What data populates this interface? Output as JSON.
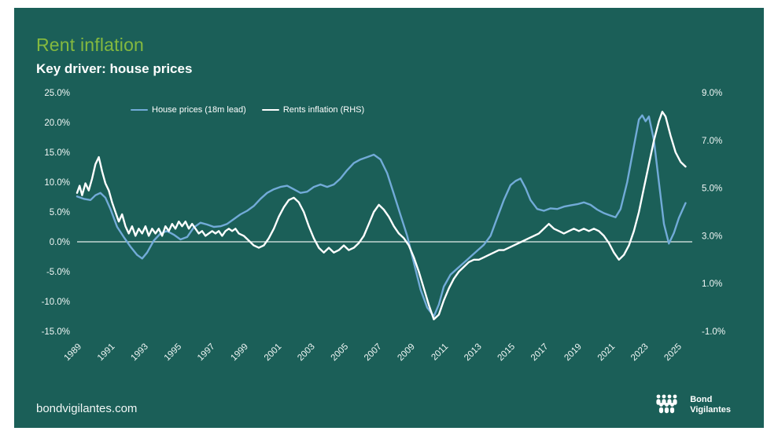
{
  "page": {
    "title": "Rent inflation",
    "subtitle": "Key driver: house prices",
    "footer_link": "bondvigilantes.com",
    "logo_line1": "Bond",
    "logo_line2": "Vigilantes"
  },
  "colors": {
    "background": "#1b5f58",
    "title_green": "#84b93f",
    "axis_text": "#f2f7f6",
    "zero_line": "#e6eeec",
    "house_prices_line": "#72abd8",
    "rents_line": "#ffffff"
  },
  "chart_data": {
    "type": "line",
    "title": "Rent inflation",
    "subtitle": "Key driver: house prices",
    "grid": false,
    "legend_position": "top-left",
    "zero_line_value": 0,
    "x_axis": {
      "range": [
        1989,
        2025.9
      ],
      "ticks": [
        {
          "value": 1989,
          "label": "1989"
        },
        {
          "value": 1991,
          "label": "1991"
        },
        {
          "value": 1993,
          "label": "1993"
        },
        {
          "value": 1995,
          "label": "1995"
        },
        {
          "value": 1997,
          "label": "1997"
        },
        {
          "value": 1999,
          "label": "1999"
        },
        {
          "value": 2001,
          "label": "2001"
        },
        {
          "value": 2003,
          "label": "2003"
        },
        {
          "value": 2005,
          "label": "2005"
        },
        {
          "value": 2007,
          "label": "2007"
        },
        {
          "value": 2009,
          "label": "2009"
        },
        {
          "value": 2011,
          "label": "2011"
        },
        {
          "value": 2013,
          "label": "2013"
        },
        {
          "value": 2015,
          "label": "2015"
        },
        {
          "value": 2017,
          "label": "2017"
        },
        {
          "value": 2019,
          "label": "2019"
        },
        {
          "value": 2021,
          "label": "2021"
        },
        {
          "value": 2023,
          "label": "2023"
        },
        {
          "value": 2025,
          "label": "2025"
        }
      ]
    },
    "left_axis": {
      "range": [
        -15,
        25
      ],
      "ticks": [
        {
          "value": 25,
          "label": "25.0%"
        },
        {
          "value": 20,
          "label": "20.0%"
        },
        {
          "value": 15,
          "label": "15.0%"
        },
        {
          "value": 10,
          "label": "10.0%"
        },
        {
          "value": 5,
          "label": "5.0%"
        },
        {
          "value": 0,
          "label": "0.0%"
        },
        {
          "value": -5,
          "label": "-5.0%"
        },
        {
          "value": -10,
          "label": "-10.0%"
        },
        {
          "value": -15,
          "label": "-15.0%"
        }
      ]
    },
    "right_axis": {
      "range": [
        -1,
        9
      ],
      "ticks": [
        {
          "value": 9,
          "label": "9.0%"
        },
        {
          "value": 7,
          "label": "7.0%"
        },
        {
          "value": 5,
          "label": "5.0%"
        },
        {
          "value": 3,
          "label": "3.0%"
        },
        {
          "value": 1,
          "label": "1.0%"
        },
        {
          "value": -1,
          "label": "-1.0%"
        }
      ]
    },
    "series": [
      {
        "id": "house-prices",
        "name": "House prices (18m lead)",
        "axis": "left",
        "color": "#72abd8",
        "points": [
          [
            1989.0,
            7.6
          ],
          [
            1989.4,
            7.2
          ],
          [
            1989.8,
            7.0
          ],
          [
            1990.1,
            7.8
          ],
          [
            1990.4,
            8.2
          ],
          [
            1990.7,
            7.4
          ],
          [
            1991.0,
            5.5
          ],
          [
            1991.4,
            2.5
          ],
          [
            1991.8,
            0.8
          ],
          [
            1992.2,
            -0.8
          ],
          [
            1992.6,
            -2.2
          ],
          [
            1992.9,
            -2.8
          ],
          [
            1993.2,
            -1.8
          ],
          [
            1993.6,
            0.2
          ],
          [
            1994.0,
            1.4
          ],
          [
            1994.4,
            1.8
          ],
          [
            1994.8,
            1.2
          ],
          [
            1995.2,
            0.4
          ],
          [
            1995.6,
            0.8
          ],
          [
            1996.0,
            2.4
          ],
          [
            1996.4,
            3.2
          ],
          [
            1996.8,
            2.9
          ],
          [
            1997.2,
            2.5
          ],
          [
            1997.6,
            2.6
          ],
          [
            1998.0,
            3.0
          ],
          [
            1998.4,
            3.8
          ],
          [
            1998.8,
            4.6
          ],
          [
            1999.2,
            5.2
          ],
          [
            1999.6,
            6.0
          ],
          [
            2000.0,
            7.2
          ],
          [
            2000.4,
            8.2
          ],
          [
            2000.8,
            8.8
          ],
          [
            2001.2,
            9.2
          ],
          [
            2001.6,
            9.4
          ],
          [
            2002.0,
            8.8
          ],
          [
            2002.4,
            8.2
          ],
          [
            2002.8,
            8.4
          ],
          [
            2003.2,
            9.2
          ],
          [
            2003.6,
            9.6
          ],
          [
            2004.0,
            9.2
          ],
          [
            2004.4,
            9.6
          ],
          [
            2004.8,
            10.6
          ],
          [
            2005.2,
            12.0
          ],
          [
            2005.6,
            13.2
          ],
          [
            2006.0,
            13.8
          ],
          [
            2006.4,
            14.2
          ],
          [
            2006.8,
            14.6
          ],
          [
            2007.2,
            13.8
          ],
          [
            2007.6,
            11.5
          ],
          [
            2008.0,
            8.0
          ],
          [
            2008.4,
            4.5
          ],
          [
            2008.8,
            1.0
          ],
          [
            2009.2,
            -3.5
          ],
          [
            2009.6,
            -8.0
          ],
          [
            2010.0,
            -11.0
          ],
          [
            2010.4,
            -12.5
          ],
          [
            2010.7,
            -10.5
          ],
          [
            2011.0,
            -7.5
          ],
          [
            2011.4,
            -5.5
          ],
          [
            2011.8,
            -4.5
          ],
          [
            2012.2,
            -3.5
          ],
          [
            2012.6,
            -2.5
          ],
          [
            2013.0,
            -1.5
          ],
          [
            2013.4,
            -0.5
          ],
          [
            2013.8,
            1.0
          ],
          [
            2014.2,
            4.0
          ],
          [
            2014.6,
            7.0
          ],
          [
            2015.0,
            9.5
          ],
          [
            2015.3,
            10.2
          ],
          [
            2015.6,
            10.6
          ],
          [
            2015.9,
            9.0
          ],
          [
            2016.2,
            7.0
          ],
          [
            2016.6,
            5.5
          ],
          [
            2017.0,
            5.2
          ],
          [
            2017.4,
            5.6
          ],
          [
            2017.8,
            5.5
          ],
          [
            2018.2,
            5.9
          ],
          [
            2018.6,
            6.1
          ],
          [
            2019.0,
            6.3
          ],
          [
            2019.4,
            6.6
          ],
          [
            2019.8,
            6.2
          ],
          [
            2020.2,
            5.4
          ],
          [
            2020.6,
            4.8
          ],
          [
            2021.0,
            4.4
          ],
          [
            2021.3,
            4.1
          ],
          [
            2021.6,
            5.5
          ],
          [
            2022.0,
            10.0
          ],
          [
            2022.4,
            16.0
          ],
          [
            2022.7,
            20.5
          ],
          [
            2022.9,
            21.2
          ],
          [
            2023.1,
            20.2
          ],
          [
            2023.3,
            21.0
          ],
          [
            2023.6,
            17.0
          ],
          [
            2023.9,
            10.0
          ],
          [
            2024.2,
            3.0
          ],
          [
            2024.5,
            -0.3
          ],
          [
            2024.8,
            1.5
          ],
          [
            2025.1,
            4.0
          ],
          [
            2025.5,
            6.5
          ]
        ]
      },
      {
        "id": "rents",
        "name": "Rents inflation (RHS)",
        "axis": "right",
        "color": "#ffffff",
        "points": [
          [
            1989.0,
            4.8
          ],
          [
            1989.15,
            5.1
          ],
          [
            1989.3,
            4.7
          ],
          [
            1989.5,
            5.2
          ],
          [
            1989.7,
            4.9
          ],
          [
            1989.9,
            5.4
          ],
          [
            1990.1,
            6.0
          ],
          [
            1990.3,
            6.3
          ],
          [
            1990.5,
            5.7
          ],
          [
            1990.7,
            5.2
          ],
          [
            1990.9,
            4.9
          ],
          [
            1991.1,
            4.4
          ],
          [
            1991.3,
            4.0
          ],
          [
            1991.5,
            3.6
          ],
          [
            1991.7,
            3.9
          ],
          [
            1991.9,
            3.4
          ],
          [
            1992.1,
            3.1
          ],
          [
            1992.3,
            3.4
          ],
          [
            1992.5,
            3.0
          ],
          [
            1992.7,
            3.3
          ],
          [
            1992.9,
            3.1
          ],
          [
            1993.1,
            3.4
          ],
          [
            1993.3,
            3.0
          ],
          [
            1993.5,
            3.3
          ],
          [
            1993.7,
            3.1
          ],
          [
            1993.9,
            3.3
          ],
          [
            1994.1,
            3.0
          ],
          [
            1994.3,
            3.4
          ],
          [
            1994.5,
            3.2
          ],
          [
            1994.7,
            3.5
          ],
          [
            1994.9,
            3.3
          ],
          [
            1995.1,
            3.6
          ],
          [
            1995.3,
            3.4
          ],
          [
            1995.5,
            3.6
          ],
          [
            1995.7,
            3.3
          ],
          [
            1995.9,
            3.5
          ],
          [
            1996.1,
            3.3
          ],
          [
            1996.3,
            3.1
          ],
          [
            1996.5,
            3.2
          ],
          [
            1996.7,
            3.0
          ],
          [
            1996.9,
            3.1
          ],
          [
            1997.1,
            3.2
          ],
          [
            1997.3,
            3.1
          ],
          [
            1997.5,
            3.2
          ],
          [
            1997.7,
            3.0
          ],
          [
            1997.9,
            3.2
          ],
          [
            1998.1,
            3.3
          ],
          [
            1998.3,
            3.2
          ],
          [
            1998.5,
            3.3
          ],
          [
            1998.7,
            3.1
          ],
          [
            1999.0,
            3.0
          ],
          [
            1999.3,
            2.8
          ],
          [
            1999.6,
            2.6
          ],
          [
            1999.9,
            2.5
          ],
          [
            2000.2,
            2.6
          ],
          [
            2000.5,
            2.9
          ],
          [
            2000.8,
            3.3
          ],
          [
            2001.1,
            3.8
          ],
          [
            2001.4,
            4.2
          ],
          [
            2001.7,
            4.5
          ],
          [
            2002.0,
            4.6
          ],
          [
            2002.3,
            4.4
          ],
          [
            2002.6,
            4.0
          ],
          [
            2002.9,
            3.4
          ],
          [
            2003.2,
            2.9
          ],
          [
            2003.5,
            2.5
          ],
          [
            2003.8,
            2.3
          ],
          [
            2004.1,
            2.5
          ],
          [
            2004.4,
            2.3
          ],
          [
            2004.7,
            2.4
          ],
          [
            2005.0,
            2.6
          ],
          [
            2005.3,
            2.4
          ],
          [
            2005.6,
            2.5
          ],
          [
            2005.9,
            2.7
          ],
          [
            2006.2,
            3.0
          ],
          [
            2006.5,
            3.5
          ],
          [
            2006.8,
            4.0
          ],
          [
            2007.1,
            4.3
          ],
          [
            2007.4,
            4.1
          ],
          [
            2007.7,
            3.8
          ],
          [
            2008.0,
            3.4
          ],
          [
            2008.3,
            3.1
          ],
          [
            2008.6,
            2.9
          ],
          [
            2008.9,
            2.6
          ],
          [
            2009.2,
            2.1
          ],
          [
            2009.5,
            1.5
          ],
          [
            2009.8,
            0.8
          ],
          [
            2010.1,
            0.1
          ],
          [
            2010.4,
            -0.5
          ],
          [
            2010.7,
            -0.3
          ],
          [
            2011.0,
            0.3
          ],
          [
            2011.3,
            0.8
          ],
          [
            2011.6,
            1.2
          ],
          [
            2011.9,
            1.5
          ],
          [
            2012.2,
            1.7
          ],
          [
            2012.5,
            1.9
          ],
          [
            2012.8,
            2.0
          ],
          [
            2013.1,
            2.0
          ],
          [
            2013.4,
            2.1
          ],
          [
            2013.7,
            2.2
          ],
          [
            2014.0,
            2.3
          ],
          [
            2014.3,
            2.4
          ],
          [
            2014.6,
            2.4
          ],
          [
            2014.9,
            2.5
          ],
          [
            2015.2,
            2.6
          ],
          [
            2015.5,
            2.7
          ],
          [
            2015.8,
            2.8
          ],
          [
            2016.1,
            2.9
          ],
          [
            2016.4,
            3.0
          ],
          [
            2016.7,
            3.1
          ],
          [
            2017.0,
            3.3
          ],
          [
            2017.3,
            3.5
          ],
          [
            2017.6,
            3.3
          ],
          [
            2017.9,
            3.2
          ],
          [
            2018.2,
            3.1
          ],
          [
            2018.5,
            3.2
          ],
          [
            2018.8,
            3.3
          ],
          [
            2019.1,
            3.2
          ],
          [
            2019.4,
            3.3
          ],
          [
            2019.7,
            3.2
          ],
          [
            2020.0,
            3.3
          ],
          [
            2020.3,
            3.2
          ],
          [
            2020.6,
            3.0
          ],
          [
            2020.9,
            2.7
          ],
          [
            2021.2,
            2.3
          ],
          [
            2021.5,
            2.0
          ],
          [
            2021.8,
            2.2
          ],
          [
            2022.1,
            2.6
          ],
          [
            2022.4,
            3.2
          ],
          [
            2022.7,
            4.0
          ],
          [
            2023.0,
            5.0
          ],
          [
            2023.3,
            6.0
          ],
          [
            2023.6,
            7.0
          ],
          [
            2023.9,
            7.8
          ],
          [
            2024.1,
            8.2
          ],
          [
            2024.3,
            8.0
          ],
          [
            2024.6,
            7.2
          ],
          [
            2024.9,
            6.5
          ],
          [
            2025.2,
            6.1
          ],
          [
            2025.5,
            5.9
          ]
        ]
      }
    ]
  }
}
